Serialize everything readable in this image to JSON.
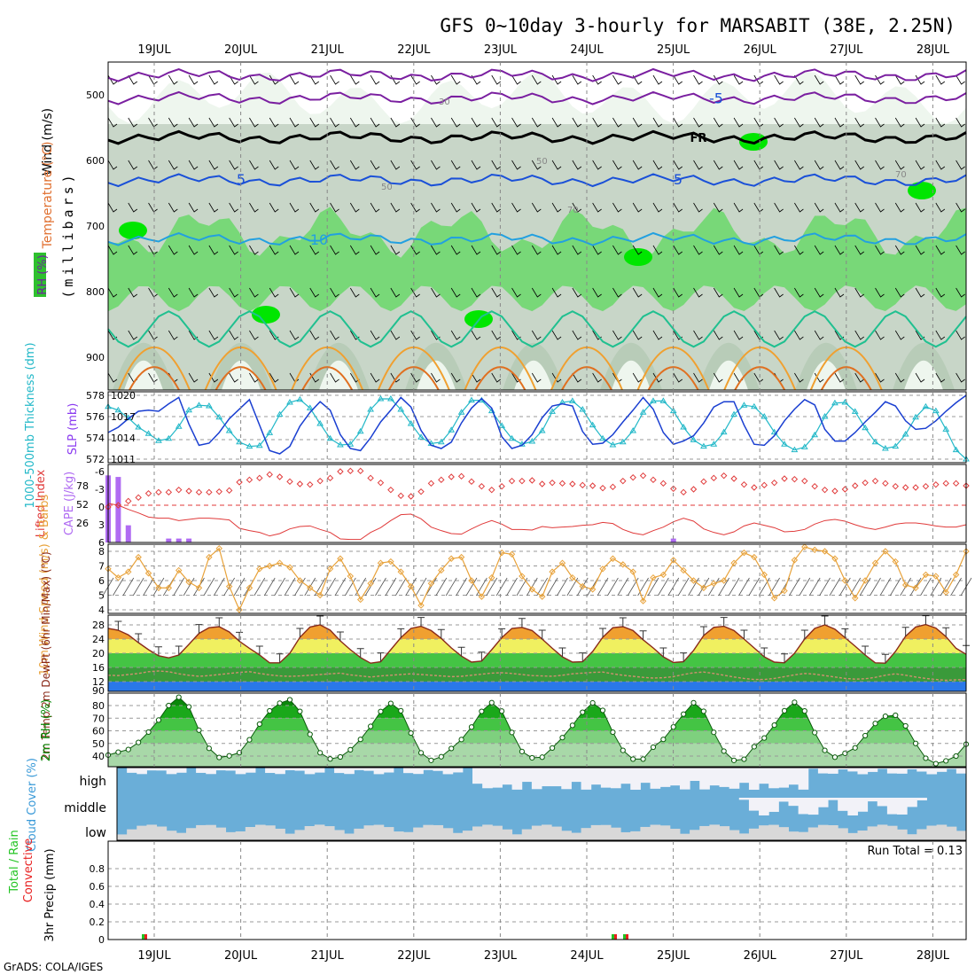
{
  "title": "GFS 0~10day 3-hourly for MARSABIT (38E, 2.25N)",
  "credit": "GrADS: COLA/IGES",
  "dates": [
    "19JUL",
    "20JUL",
    "21JUL",
    "22JUL",
    "23JUL",
    "24JUL",
    "25JUL",
    "26JUL",
    "27JUL",
    "28JUL"
  ],
  "chart_data": [
    {
      "type": "area",
      "id": "upper",
      "ylabel_parts": {
        "wind": "Wind (m/s)",
        "temp": "Temperature (°C)",
        "rh": "RH (%)",
        "mb": "(millibars)"
      },
      "yticks": [
        500,
        600,
        700,
        800,
        900
      ],
      "ylim": [
        950,
        450
      ],
      "temperature_contour_labels": [
        "5",
        "10",
        "-5"
      ],
      "freezing_label": "FR",
      "rh_contour_labels": [
        "30",
        "50",
        "50",
        "70",
        "70"
      ],
      "temperature_levels_mb": {
        "-5": 505,
        "FR": 565,
        "5": 630,
        "10": 720
      },
      "rh_colors": [
        "#ffffff",
        "#e6f2e6",
        "#c8d6c8",
        "#b0c8b0",
        "#78d878",
        "#00e600"
      ]
    },
    {
      "type": "line",
      "id": "thickness_slp",
      "ylabel_left": "1000-500mb Thickness (dm)",
      "ylabel_right": "SLP (mb)",
      "yticks_left": [
        572,
        574,
        576,
        578
      ],
      "yticks_right": [
        1011,
        1014,
        1017,
        1020
      ],
      "series": [
        {
          "name": "1000-500mb Thickness (dm)",
          "color": "#1a3fd1",
          "values": [
            574.5,
            575.0,
            575.8,
            576.5,
            576.6,
            576.5,
            577.2,
            577.8,
            575.3,
            573.3,
            573.5,
            574.5,
            575.8,
            576.7,
            577.6,
            575.2,
            572.8,
            572.5,
            573.2,
            575.1,
            576.4,
            577.4,
            576.6,
            574.3,
            573.0,
            572.8,
            574.0,
            575.5,
            576.6,
            577.8,
            576.9,
            574.7,
            573.3,
            573.0,
            573.6,
            575.4,
            576.8,
            577.7,
            576.8,
            574.1,
            573.0,
            573.3,
            574.3,
            575.9,
            577.0,
            577.2,
            577.0,
            574.6,
            573.4,
            573.5,
            574.3,
            575.5,
            576.6,
            577.8,
            576.7,
            574.5,
            573.4,
            573.7,
            574.2,
            575.4,
            576.9,
            577.4,
            577.4,
            575.2,
            573.4,
            573.3,
            574.2,
            575.6,
            576.7,
            577.6,
            577.1,
            574.8,
            573.7,
            573.7,
            574.5,
            575.5,
            576.4,
            577.4,
            577.0,
            575.6,
            574.8,
            574.9,
            575.6,
            576.5,
            577.3,
            578.0
          ]
        },
        {
          "name": "SLP (mb)",
          "color": "#22b8c8",
          "values": [
            1018.4,
            1017.9,
            1016.8,
            1015.5,
            1014.6,
            1013.6,
            1013.9,
            1015.6,
            1017.9,
            1018.6,
            1018.5,
            1016.9,
            1015.0,
            1013.4,
            1012.8,
            1012.9,
            1014.7,
            1017.3,
            1019.0,
            1019.4,
            1018.2,
            1016.0,
            1013.9,
            1013.0,
            1013.1,
            1014.9,
            1018.0,
            1019.5,
            1019.5,
            1018.0,
            1016.0,
            1014.1,
            1013.2,
            1013.4,
            1015.1,
            1017.6,
            1019.3,
            1019.3,
            1017.8,
            1015.7,
            1013.9,
            1013.1,
            1013.5,
            1015.0,
            1017.7,
            1019.0,
            1019.2,
            1018.0,
            1015.8,
            1013.9,
            1013.0,
            1013.4,
            1015.0,
            1017.6,
            1019.2,
            1019.2,
            1017.8,
            1015.5,
            1013.7,
            1012.8,
            1013.1,
            1014.8,
            1017.3,
            1018.6,
            1018.4,
            1017.0,
            1014.8,
            1013.1,
            1012.3,
            1012.7,
            1014.4,
            1017.0,
            1018.9,
            1019.0,
            1017.7,
            1015.4,
            1013.4,
            1012.5,
            1012.8,
            1014.5,
            1016.9,
            1018.4,
            1017.8,
            1015.2,
            1012.3,
            1011.0
          ]
        }
      ]
    },
    {
      "type": "line",
      "id": "li_cape",
      "ylabel_left": "Lifted Index",
      "ylabel_right": "CAPE (J/kg)",
      "yticks_left": [
        "-6",
        "-3",
        "0",
        "3",
        "6"
      ],
      "yticks_right": [
        "78",
        "52",
        "26"
      ],
      "series": [
        {
          "name": "Lifted Index",
          "color": "#e03a3a",
          "values": [
            -0.3,
            0.0,
            0.7,
            1.3,
            2.0,
            2.2,
            2.2,
            2.6,
            2.4,
            2.2,
            2.2,
            2.3,
            2.5,
            3.9,
            4.3,
            4.6,
            5.2,
            4.8,
            4.0,
            3.6,
            3.5,
            4.1,
            4.6,
            5.7,
            5.8,
            5.8,
            4.6,
            3.8,
            2.6,
            1.6,
            1.5,
            2.3,
            3.7,
            4.3,
            4.8,
            4.9,
            4.0,
            3.2,
            2.6,
            3.2,
            4.1,
            4.1,
            4.2,
            3.6,
            3.8,
            3.7,
            3.6,
            3.4,
            3.3,
            2.9,
            3.1,
            4.1,
            4.7,
            5.0,
            4.3,
            3.7,
            2.8,
            2.2,
            2.7,
            4.0,
            4.6,
            5.0,
            4.5,
            3.5,
            3.0,
            3.4,
            3.8,
            4.5,
            4.4,
            4.1,
            3.2,
            2.6,
            2.4,
            2.7,
            3.3,
            3.8,
            4.1,
            3.7,
            3.2,
            3.0,
            3.0,
            3.2,
            3.5,
            3.7,
            3.7,
            3.3
          ]
        },
        {
          "name": "CAPE (J/kg)",
          "color": "#b06cf2",
          "values": [
            86,
            84,
            22,
            0,
            0,
            0,
            5,
            5,
            5,
            0,
            0,
            0,
            0,
            0,
            0,
            0,
            0,
            0,
            0,
            0,
            0,
            0,
            0,
            0,
            0,
            0,
            0,
            0,
            0,
            0,
            0,
            0,
            0,
            0,
            0,
            0,
            0,
            0,
            0,
            0,
            0,
            0,
            0,
            0,
            0,
            0,
            0,
            0,
            0,
            0,
            0,
            0,
            0,
            0,
            0,
            0,
            5,
            0,
            0,
            0,
            0,
            0,
            0,
            0,
            0,
            0,
            0,
            0,
            0,
            0,
            0,
            0,
            0,
            0,
            0,
            0,
            0,
            0,
            0,
            0,
            0,
            0,
            0,
            0,
            0,
            0
          ]
        }
      ]
    },
    {
      "type": "line",
      "id": "wind10m",
      "ylabel": "10m Wind Speed (m/s) & Barbs",
      "yticks": [
        4,
        5,
        6,
        7,
        8
      ],
      "series": [
        {
          "name": "10m Wind Speed (m/s)",
          "color": "#e8a23a",
          "values": [
            6.8,
            6.2,
            6.6,
            7.6,
            6.5,
            5.5,
            5.5,
            6.7,
            5.9,
            5.5,
            7.6,
            8.2,
            5.6,
            4.0,
            5.5,
            6.8,
            7.0,
            7.2,
            6.9,
            6.0,
            5.5,
            5.0,
            6.8,
            7.5,
            6.3,
            4.7,
            5.8,
            7.2,
            7.3,
            6.6,
            5.6,
            4.3,
            5.8,
            6.7,
            7.5,
            7.6,
            6.0,
            4.9,
            6.2,
            7.9,
            7.8,
            6.3,
            5.4,
            4.9,
            6.6,
            7.2,
            6.2,
            5.6,
            5.4,
            6.8,
            7.5,
            7.1,
            6.6,
            4.6,
            6.2,
            6.4,
            7.4,
            6.7,
            6.0,
            5.5,
            5.8,
            6.0,
            7.2,
            7.9,
            7.6,
            6.4,
            4.8,
            5.3,
            7.4,
            8.3,
            8.1,
            8.0,
            7.5,
            6.0,
            4.8,
            6.0,
            7.2,
            8.0,
            7.3,
            5.7,
            5.5,
            6.4,
            6.3,
            5.2,
            6.4,
            8.0
          ]
        }
      ]
    },
    {
      "type": "area",
      "id": "temp2m",
      "ylabel": "2m Temp 2m DewPt (6hr Min/Max) (°C)",
      "yticks": [
        12,
        16,
        20,
        24,
        28
      ],
      "tick_90": "90",
      "series": [
        {
          "name": "2m Temp",
          "color": "#8a2a1a",
          "values": [
            27.0,
            26.5,
            25.2,
            23.0,
            21.0,
            19.3,
            18.7,
            19.5,
            22.5,
            25.6,
            27.2,
            27.5,
            26.0,
            23.4,
            21.4,
            19.5,
            17.3,
            17.3,
            20.0,
            24.5,
            27.4,
            28.0,
            26.5,
            23.5,
            21.0,
            18.8,
            17.2,
            17.6,
            21.0,
            24.4,
            27.0,
            27.6,
            26.4,
            24.2,
            21.5,
            19.2,
            17.5,
            17.8,
            21.0,
            24.4,
            27.0,
            27.3,
            26.4,
            24.0,
            21.4,
            19.0,
            17.5,
            17.6,
            20.5,
            24.5,
            27.2,
            27.5,
            26.4,
            23.8,
            21.5,
            19.0,
            17.4,
            17.6,
            20.8,
            25.0,
            27.3,
            27.6,
            26.4,
            24.0,
            21.5,
            19.0,
            17.5,
            17.3,
            20.0,
            24.0,
            27.0,
            28.0,
            26.8,
            24.4,
            22.0,
            19.5,
            17.3,
            17.2,
            20.5,
            24.8,
            27.4,
            28.1,
            27.1,
            24.7,
            21.4,
            19.7
          ]
        },
        {
          "name": "2m DewPt",
          "color": "#d09070",
          "values": [
            13.8,
            13.7,
            14.0,
            14.3,
            14.8,
            15.0,
            14.8,
            14.2,
            13.8,
            13.5,
            13.7,
            14.0,
            14.3,
            14.6,
            14.8,
            14.3,
            13.9,
            13.6,
            13.5,
            13.6,
            13.8,
            14.0,
            14.2,
            14.4,
            13.9,
            13.6,
            13.3,
            13.6,
            13.8,
            14.0,
            14.2,
            14.0,
            13.8,
            13.6,
            13.4,
            13.5,
            13.8,
            14.1,
            14.4,
            14.5,
            14.3,
            14.0,
            13.7,
            13.6,
            13.5,
            13.8,
            14.2,
            14.4,
            14.6,
            14.7,
            14.2,
            13.8,
            13.5,
            13.2,
            13.0,
            13.1,
            13.4,
            14.0,
            14.5,
            14.7,
            14.3,
            13.8,
            13.3,
            12.9,
            12.6,
            12.6,
            12.9,
            13.4,
            13.9,
            14.3,
            14.1,
            13.7,
            13.3,
            12.9,
            12.7,
            12.8,
            13.2,
            13.8,
            14.2,
            13.8,
            13.3,
            12.9,
            12.6,
            12.4,
            12.5,
            12.6
          ]
        }
      ]
    },
    {
      "type": "area",
      "id": "rh2m",
      "ylabel": "2m RH (%)",
      "yticks": [
        40,
        50,
        60,
        70,
        80
      ],
      "series": [
        {
          "name": "2m RH (%)",
          "color": "#0a6a0a",
          "values": [
            40.8,
            43.1,
            45.2,
            50.8,
            59.0,
            68.5,
            80.0,
            86.6,
            79.0,
            60.5,
            46.1,
            38.9,
            40.2,
            42.7,
            52.9,
            65.3,
            75.8,
            81.9,
            84.6,
            75.4,
            57.2,
            42.6,
            37.7,
            39.3,
            45.0,
            53.2,
            63.5,
            75.3,
            81.7,
            75.9,
            58.2,
            42.6,
            36.6,
            39.5,
            46.0,
            53.1,
            63.0,
            75.4,
            82.3,
            75.6,
            58.7,
            43.6,
            38.6,
            39.1,
            46.4,
            54.6,
            64.3,
            74.7,
            82.1,
            76.2,
            58.9,
            44.5,
            37.6,
            37.6,
            47.0,
            53.2,
            63.1,
            73.2,
            82.2,
            75.5,
            58.8,
            43.9,
            36.6,
            37.5,
            47.4,
            54.3,
            64.5,
            75.9,
            82.6,
            75.7,
            58.6,
            44.5,
            39.1,
            42.2,
            46.5,
            56.2,
            65.8,
            71.5,
            72.3,
            63.9,
            50.0,
            38.3,
            34.0,
            36.2,
            40.0,
            49.4
          ]
        }
      ]
    },
    {
      "type": "area",
      "id": "cloud",
      "ylabel": "Cloud Cover (%)",
      "row_labels": [
        "high",
        "middle",
        "low"
      ],
      "colors": {
        "cloud": "#6aaed8",
        "clear": "#f2f2f8",
        "low_gray": "#d8d8d8"
      }
    },
    {
      "type": "bar",
      "id": "precip",
      "ylabel_left_parts": {
        "total": "Total / Rain",
        "conv": "Convective"
      },
      "ylabel": "3hr Precip (mm)",
      "run_total": "Run Total = 0.13",
      "yticks": [
        "0",
        "0.2",
        "0.4",
        "0.6",
        "0.8"
      ],
      "ylim": [
        0,
        1
      ],
      "series": [
        {
          "name": "Total / Rain",
          "color": "#22c422",
          "values": [
            0.02,
            0.02,
            0.02
          ]
        },
        {
          "name": "Convective",
          "color": "#e82020",
          "values": [
            0.02,
            0.02,
            0.02
          ]
        }
      ]
    }
  ]
}
